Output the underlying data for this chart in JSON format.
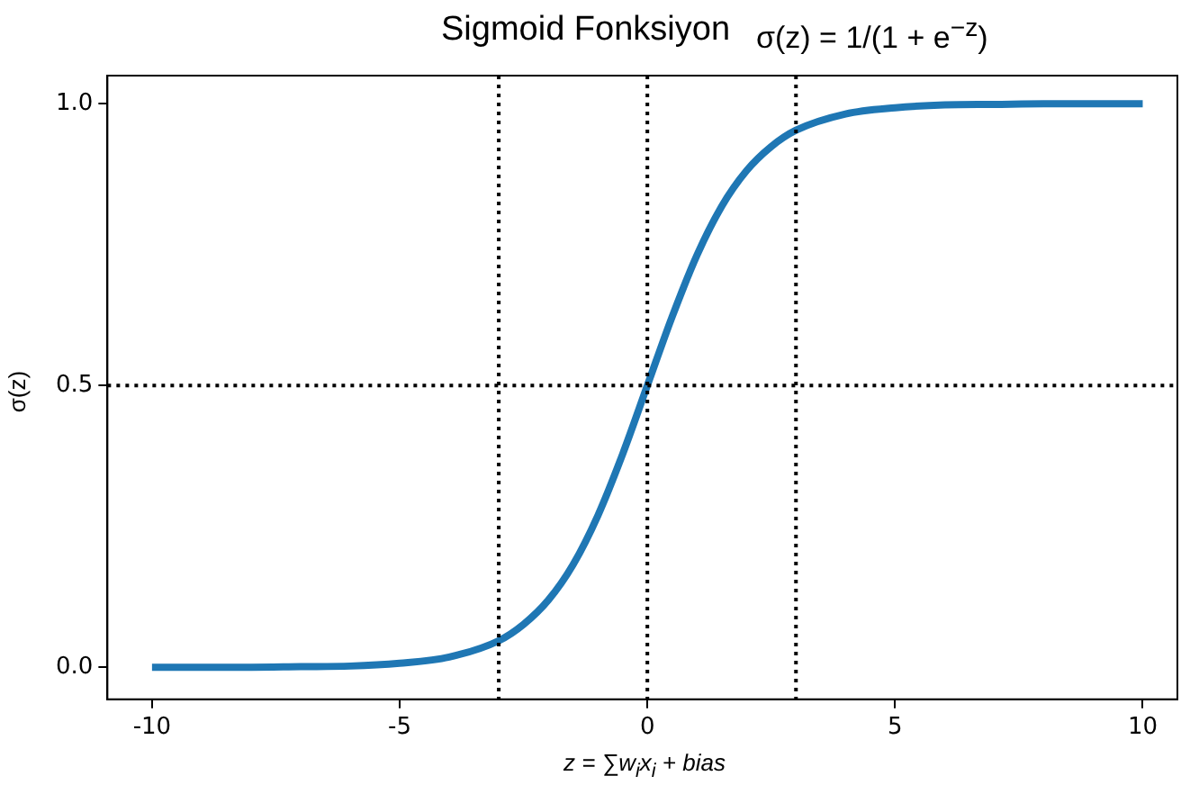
{
  "chart_data": {
    "type": "line",
    "title": "Sigmoid Fonksiyon",
    "annotations": [
      "σ(z) = 1/(1 + e$^{−z}$)"
    ],
    "xlabel": "z = ∑w$_{i}$x$_{i}$ + bias",
    "ylabel": "σ(z)",
    "x": [
      -10,
      -9,
      -8,
      -7,
      -6,
      -5,
      -4,
      -3,
      -2.5,
      -2,
      -1.5,
      -1,
      -0.5,
      0,
      0.5,
      1,
      1.5,
      2,
      2.5,
      3,
      4,
      5,
      6,
      7,
      8,
      9,
      10
    ],
    "series": [
      {
        "color": "#1f77b4",
        "values": [
          0,
          0,
          0,
          0.001,
          0.002,
          0.007,
          0.018,
          0.047,
          0.076,
          0.119,
          0.182,
          0.269,
          0.378,
          0.5,
          0.622,
          0.731,
          0.818,
          0.881,
          0.924,
          0.953,
          0.982,
          0.993,
          0.998,
          0.999,
          1,
          1,
          1
        ]
      }
    ],
    "xlim": [
      -10.9,
      10.7
    ],
    "ylim": [
      -0.057,
      1.05
    ],
    "xticks": [
      -10,
      -5,
      0,
      5,
      10
    ],
    "yticks": [
      {
        "value": 0,
        "label": "0.0"
      },
      {
        "value": 0.5,
        "label": "0.5"
      },
      {
        "value": 1,
        "label": "1.0"
      }
    ],
    "ref_lines": [
      {
        "axis": "x",
        "value": -3,
        "line_style": "dotted"
      },
      {
        "axis": "x",
        "value": 0,
        "line_style": "dotted"
      },
      {
        "axis": "x",
        "value": 3,
        "line_style": "dotted"
      },
      {
        "axis": "y",
        "value": 0.5,
        "line_style": "dotted"
      }
    ],
    "grid": false,
    "legend": false,
    "marker": "none",
    "line_style": "solid"
  }
}
